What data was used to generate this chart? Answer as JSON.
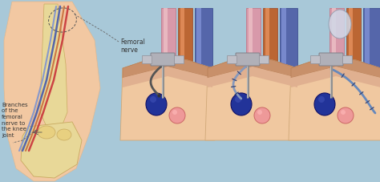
{
  "bg_color": "#a8c8d8",
  "skin_color": "#f0c8a0",
  "skin_dark": "#e8b888",
  "bone_color": "#e8d898",
  "bone_edge": "#c8aa60",
  "artery_color": "#cc6644",
  "vein_color": "#7888bb",
  "nerve_color": "#9999cc",
  "pink_tube": "#d899aa",
  "muscle_color": "#d8a888",
  "needle_color": "#a8a8b0",
  "needle_dark": "#787888",
  "catheter_color": "#8899bb",
  "text_color": "#333333",
  "label_femoral": "Femoral\nnerve",
  "label_branches": "Branches\nof the\nfemoral\nnerve to\nthe knee\njoint",
  "figsize": [
    4.74,
    2.27
  ],
  "dpi": 100,
  "leg_skin": "#f2c8a2",
  "dark_blue_circle": "#334488",
  "pink_circle": "#dd9999"
}
